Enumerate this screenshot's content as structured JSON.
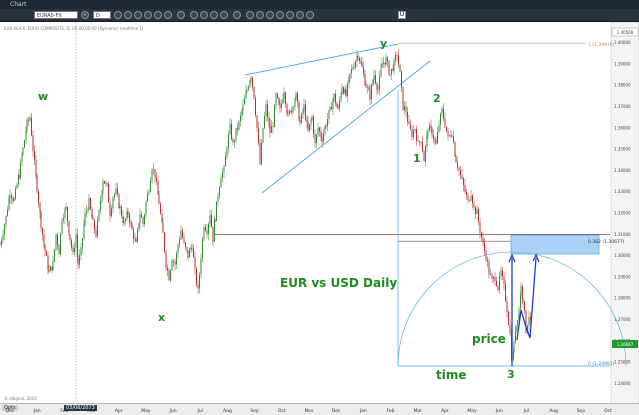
{
  "window": {
    "title": "Chart"
  },
  "toolbar": {
    "symbol": "EURA0-FX",
    "interval": "D",
    "unlink_label": "U"
  },
  "chart_header": "EUR.A0-FX, EURO COMPOSITE, D, 05:00-05:00 (Dynamic) (realtime 1)",
  "copyright": "© eSignal, 2014",
  "bottom_bar": {
    "left_label": "Opts",
    "date_readout": "03/06/2013"
  },
  "annotations": {
    "wave_w": "w",
    "wave_x": "x",
    "wave_y": "y",
    "wave_1": "1",
    "wave_2": "2",
    "wave_3": "3",
    "title": "EUR vs USD Daily",
    "price": "price",
    "time": "time",
    "fib_1": "1 (1.39978)",
    "fib_382": "0.382 (1.30677)",
    "fib_0": "0 (1.24992)"
  },
  "colors": {
    "up_bar": "#2e8b2e",
    "down_bar": "#b03030",
    "wave_label": "#1f8a1f",
    "trend_line": "#3fa9e6",
    "arrow": "#1d3bc7",
    "box": "#a9d2f5",
    "fib_line": "#d6894a",
    "level_line": "#8b1f1f",
    "last_price": "#1f9a2f"
  },
  "chart_data": {
    "type": "candlestick",
    "instrument": "EUR.A0-FX",
    "timeframe": "D",
    "x_ticks": [
      "Dec",
      "Jan",
      "Feb",
      "Mar",
      "Apr",
      "May",
      "Jun",
      "Jul",
      "Aug",
      "Sep",
      "Oct",
      "Nov",
      "Dec",
      "Jan",
      "Feb",
      "Mar",
      "Apr",
      "May",
      "Jun",
      "Jul",
      "Aug",
      "Sep",
      "Oct"
    ],
    "y_ticks": [
      1.4,
      1.39,
      1.38,
      1.37,
      1.36,
      1.35,
      1.34,
      1.33,
      1.32,
      1.31,
      1.3,
      1.29,
      1.28,
      1.27,
      1.26,
      1.25,
      1.24
    ],
    "ylim": [
      1.235,
      1.405
    ],
    "last_price": "1.26687",
    "top_price": "1.40500",
    "path_points": [
      [
        0,
        1.305
      ],
      [
        6,
        1.318
      ],
      [
        10,
        1.33
      ],
      [
        14,
        1.326
      ],
      [
        19,
        1.338
      ],
      [
        23,
        1.35
      ],
      [
        27,
        1.362
      ],
      [
        30,
        1.365
      ],
      [
        33,
        1.35
      ],
      [
        37,
        1.332
      ],
      [
        41,
        1.315
      ],
      [
        45,
        1.302
      ],
      [
        49,
        1.292
      ],
      [
        53,
        1.296
      ],
      [
        56,
        1.31
      ],
      [
        59,
        1.302
      ],
      [
        62,
        1.318
      ],
      [
        66,
        1.322
      ],
      [
        70,
        1.308
      ],
      [
        73,
        1.3
      ],
      [
        76,
        1.31
      ],
      [
        78,
        1.296
      ],
      [
        81,
        1.302
      ],
      [
        85,
        1.319
      ],
      [
        89,
        1.325
      ],
      [
        93,
        1.315
      ],
      [
        96,
        1.31
      ],
      [
        99,
        1.32
      ],
      [
        103,
        1.336
      ],
      [
        107,
        1.332
      ],
      [
        110,
        1.32
      ],
      [
        113,
        1.328
      ],
      [
        116,
        1.33
      ],
      [
        120,
        1.322
      ],
      [
        124,
        1.315
      ],
      [
        128,
        1.32
      ],
      [
        132,
        1.312
      ],
      [
        136,
        1.305
      ],
      [
        140,
        1.32
      ],
      [
        143,
        1.315
      ],
      [
        146,
        1.325
      ],
      [
        149,
        1.332
      ],
      [
        152,
        1.342
      ],
      [
        155,
        1.338
      ],
      [
        159,
        1.325
      ],
      [
        163,
        1.31
      ],
      [
        166,
        1.296
      ],
      [
        169,
        1.29
      ],
      [
        172,
        1.299
      ],
      [
        175,
        1.296
      ],
      [
        178,
        1.305
      ],
      [
        181,
        1.312
      ],
      [
        184,
        1.305
      ],
      [
        188,
        1.3
      ],
      [
        192,
        1.305
      ],
      [
        195,
        1.292
      ],
      [
        198,
        1.283
      ],
      [
        201,
        1.3
      ],
      [
        204,
        1.315
      ],
      [
        207,
        1.312
      ],
      [
        210,
        1.32
      ],
      [
        213,
        1.308
      ],
      [
        215,
        1.318
      ],
      [
        218,
        1.329
      ],
      [
        221,
        1.338
      ],
      [
        224,
        1.34
      ],
      [
        227,
        1.352
      ],
      [
        230,
        1.36
      ],
      [
        233,
        1.352
      ],
      [
        236,
        1.358
      ],
      [
        239,
        1.362
      ],
      [
        243,
        1.37
      ],
      [
        247,
        1.378
      ],
      [
        251,
        1.385
      ],
      [
        254,
        1.375
      ],
      [
        257,
        1.36
      ],
      [
        260,
        1.343
      ],
      [
        263,
        1.36
      ],
      [
        266,
        1.37
      ],
      [
        270,
        1.358
      ],
      [
        273,
        1.362
      ],
      [
        276,
        1.375
      ],
      [
        280,
        1.368
      ],
      [
        284,
        1.378
      ],
      [
        288,
        1.365
      ],
      [
        292,
        1.37
      ],
      [
        296,
        1.375
      ],
      [
        300,
        1.362
      ],
      [
        304,
        1.37
      ],
      [
        308,
        1.358
      ],
      [
        312,
        1.365
      ],
      [
        315,
        1.352
      ],
      [
        318,
        1.36
      ],
      [
        322,
        1.355
      ],
      [
        326,
        1.362
      ],
      [
        330,
        1.368
      ],
      [
        334,
        1.375
      ],
      [
        338,
        1.368
      ],
      [
        342,
        1.38
      ],
      [
        346,
        1.375
      ],
      [
        350,
        1.385
      ],
      [
        354,
        1.39
      ],
      [
        358,
        1.395
      ],
      [
        362,
        1.388
      ],
      [
        366,
        1.38
      ],
      [
        370,
        1.375
      ],
      [
        374,
        1.385
      ],
      [
        378,
        1.378
      ],
      [
        382,
        1.39
      ],
      [
        386,
        1.392
      ],
      [
        390,
        1.385
      ],
      [
        394,
        1.39
      ],
      [
        397,
        1.395
      ],
      [
        400,
        1.385
      ],
      [
        403,
        1.37
      ],
      [
        406,
        1.368
      ],
      [
        409,
        1.36
      ],
      [
        412,
        1.357
      ],
      [
        415,
        1.36
      ],
      [
        418,
        1.352
      ],
      [
        421,
        1.355
      ],
      [
        424,
        1.345
      ],
      [
        428,
        1.36
      ],
      [
        432,
        1.358
      ],
      [
        436,
        1.352
      ],
      [
        439,
        1.362
      ],
      [
        442,
        1.368
      ],
      [
        445,
        1.362
      ],
      [
        448,
        1.355
      ],
      [
        452,
        1.358
      ],
      [
        456,
        1.345
      ],
      [
        459,
        1.34
      ],
      [
        462,
        1.335
      ],
      [
        465,
        1.33
      ],
      [
        468,
        1.325
      ],
      [
        471,
        1.33
      ],
      [
        474,
        1.322
      ],
      [
        477,
        1.32
      ],
      [
        480,
        1.312
      ],
      [
        483,
        1.305
      ],
      [
        486,
        1.3
      ],
      [
        489,
        1.292
      ],
      [
        492,
        1.288
      ],
      [
        495,
        1.29
      ],
      [
        498,
        1.285
      ],
      [
        501,
        1.292
      ],
      [
        504,
        1.285
      ],
      [
        507,
        1.275
      ],
      [
        510,
        1.263
      ],
      [
        512,
        1.25
      ],
      [
        514,
        1.258
      ],
      [
        516,
        1.268
      ],
      [
        519,
        1.275
      ],
      [
        521,
        1.285
      ],
      [
        523,
        1.28
      ],
      [
        526,
        1.265
      ],
      [
        529,
        1.272
      ],
      [
        531,
        1.267
      ]
    ],
    "overlays": {
      "fib_1": 1.39978,
      "fib_382": 1.30677,
      "fib_0": 1.24992,
      "level_line": 1.31
    }
  }
}
